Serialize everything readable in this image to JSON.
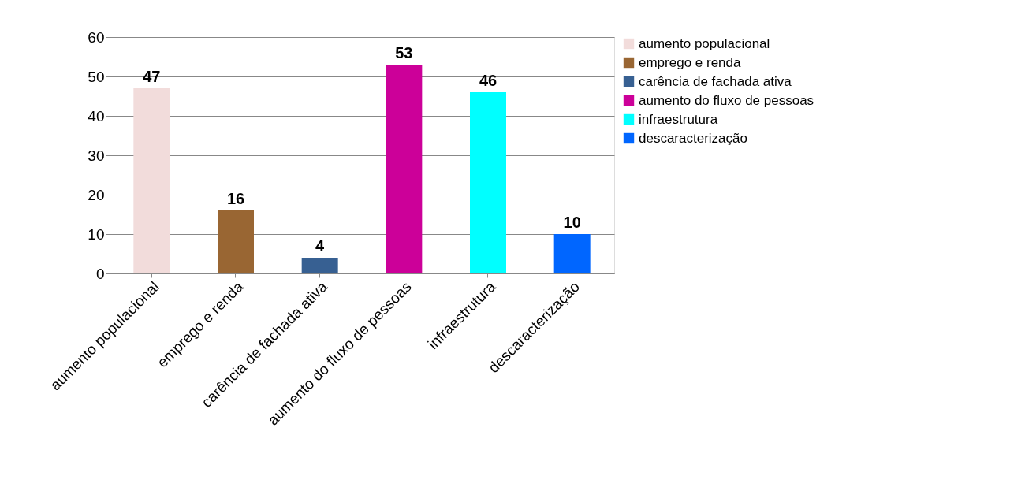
{
  "chart_data": {
    "type": "bar",
    "categories": [
      "aumento populacional",
      "emprego e renda",
      "carência de fachada ativa",
      "aumento do fluxo de pessoas",
      "infraestrutura",
      "descaracterização"
    ],
    "series": [
      {
        "name": "aumento populacional",
        "color": "#f2dcdb",
        "values": [
          47,
          null,
          null,
          null,
          null,
          null
        ]
      },
      {
        "name": "emprego e renda",
        "color": "#996633",
        "values": [
          null,
          16,
          null,
          null,
          null,
          null
        ]
      },
      {
        "name": "carência de fachada ativa",
        "color": "#376092",
        "values": [
          null,
          null,
          4,
          null,
          null,
          null
        ]
      },
      {
        "name": "aumento do fluxo de pessoas",
        "color": "#cc0099",
        "values": [
          null,
          null,
          null,
          53,
          null,
          null
        ]
      },
      {
        "name": "infraestrutura",
        "color": "#00ffff",
        "values": [
          null,
          null,
          null,
          null,
          46,
          null
        ]
      },
      {
        "name": "descaracterização",
        "color": "#0066ff",
        "values": [
          null,
          null,
          null,
          null,
          null,
          10
        ]
      }
    ],
    "ylim": [
      0,
      60
    ],
    "yticks": [
      0,
      10,
      20,
      30,
      40,
      50,
      60
    ],
    "grid": "y",
    "legend": "right",
    "data_labels": true
  }
}
